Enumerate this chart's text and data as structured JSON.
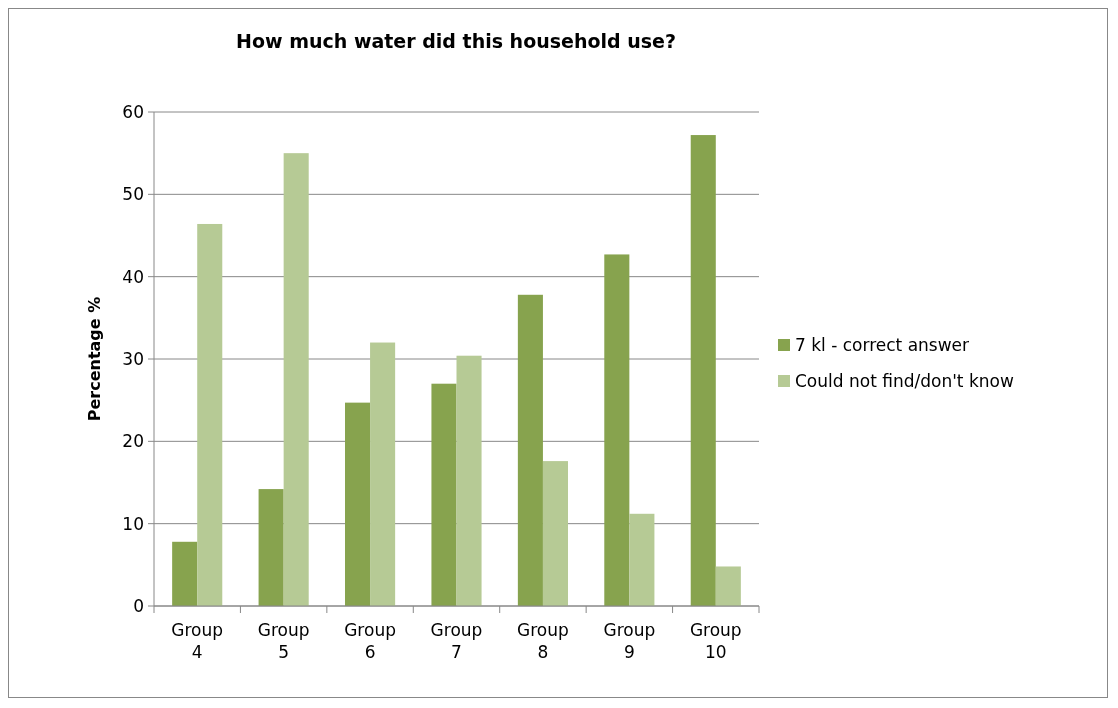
{
  "chart_data": {
    "type": "bar",
    "title": "How much water did this household use?",
    "ylabel": "Percentage %",
    "categories": [
      "Group 4",
      "Group 5",
      "Group 6",
      "Group 7",
      "Group 8",
      "Group 9",
      "Group 10"
    ],
    "series": [
      {
        "name": "7 kl - correct answer",
        "color": "#87a34e",
        "values": [
          7.8,
          14.2,
          24.7,
          27.0,
          37.8,
          42.7,
          57.2
        ]
      },
      {
        "name": "Could not find/don't know",
        "color": "#b6ca95",
        "values": [
          46.4,
          55.0,
          32.0,
          30.4,
          17.6,
          11.2,
          4.8
        ]
      }
    ],
    "ylim": [
      0,
      60
    ],
    "yticks": [
      0,
      10,
      20,
      30,
      40,
      50,
      60
    ],
    "grid": "y",
    "legend": "right"
  }
}
